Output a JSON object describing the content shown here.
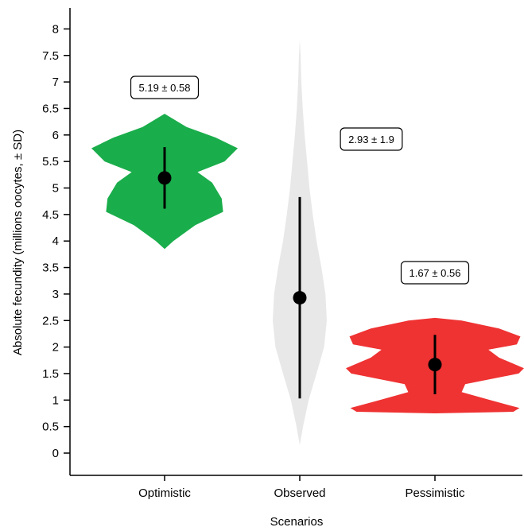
{
  "chart_data": {
    "type": "violin",
    "xlabel": "Scenarios",
    "ylabel": "Absolute fecundity (millions oocytes, ± SD)",
    "ylim": [
      -0.35,
      8.4
    ],
    "yticks": [
      "0",
      "0.5",
      "1",
      "1.5",
      "2",
      "2.5",
      "3",
      "3.5",
      "4",
      "4.5",
      "5",
      "5.5",
      "6",
      "6.5",
      "7",
      "7.5",
      "8"
    ],
    "grid": false,
    "legend": "none",
    "categories": [
      "Optimistic",
      "Observed",
      "Pessimistic"
    ],
    "series": [
      {
        "category": "Optimistic",
        "color": "#1aad4b",
        "mean": 5.19,
        "sd": 0.58,
        "label": "5.19 ± 0.58",
        "min": 3.85,
        "max": 6.4,
        "density": [
          [
            3.85,
            0.0
          ],
          [
            4.0,
            0.12
          ],
          [
            4.3,
            0.42
          ],
          [
            4.55,
            0.8
          ],
          [
            4.8,
            0.78
          ],
          [
            5.1,
            0.65
          ],
          [
            5.3,
            0.45
          ],
          [
            5.5,
            0.82
          ],
          [
            5.75,
            1.0
          ],
          [
            5.95,
            0.7
          ],
          [
            6.15,
            0.3
          ],
          [
            6.4,
            0.0
          ]
        ]
      },
      {
        "category": "Observed",
        "color": "#e8e8e8",
        "mean": 2.93,
        "sd": 1.9,
        "label": "2.93 ± 1.9",
        "min": 0.15,
        "max": 7.8,
        "density": [
          [
            0.15,
            0.0
          ],
          [
            0.5,
            0.12
          ],
          [
            1.0,
            0.33
          ],
          [
            1.5,
            0.62
          ],
          [
            2.0,
            0.9
          ],
          [
            2.5,
            1.0
          ],
          [
            3.0,
            0.95
          ],
          [
            3.5,
            0.8
          ],
          [
            4.0,
            0.62
          ],
          [
            4.5,
            0.48
          ],
          [
            5.0,
            0.36
          ],
          [
            5.5,
            0.27
          ],
          [
            6.0,
            0.18
          ],
          [
            6.5,
            0.11
          ],
          [
            7.0,
            0.06
          ],
          [
            7.5,
            0.03
          ],
          [
            7.8,
            0.0
          ]
        ]
      },
      {
        "category": "Pessimistic",
        "color": "#ef3232",
        "mean": 1.67,
        "sd": 0.56,
        "label": "1.67 ± 0.56",
        "min": 0.75,
        "max": 2.55,
        "density": [
          [
            0.75,
            0.0
          ],
          [
            0.78,
            0.88
          ],
          [
            0.85,
            0.95
          ],
          [
            1.0,
            0.62
          ],
          [
            1.15,
            0.3
          ],
          [
            1.3,
            0.34
          ],
          [
            1.5,
            0.94
          ],
          [
            1.6,
            1.0
          ],
          [
            1.8,
            0.72
          ],
          [
            1.95,
            0.6
          ],
          [
            2.05,
            0.92
          ],
          [
            2.2,
            0.96
          ],
          [
            2.35,
            0.72
          ],
          [
            2.5,
            0.3
          ],
          [
            2.55,
            0.0
          ]
        ]
      }
    ]
  }
}
